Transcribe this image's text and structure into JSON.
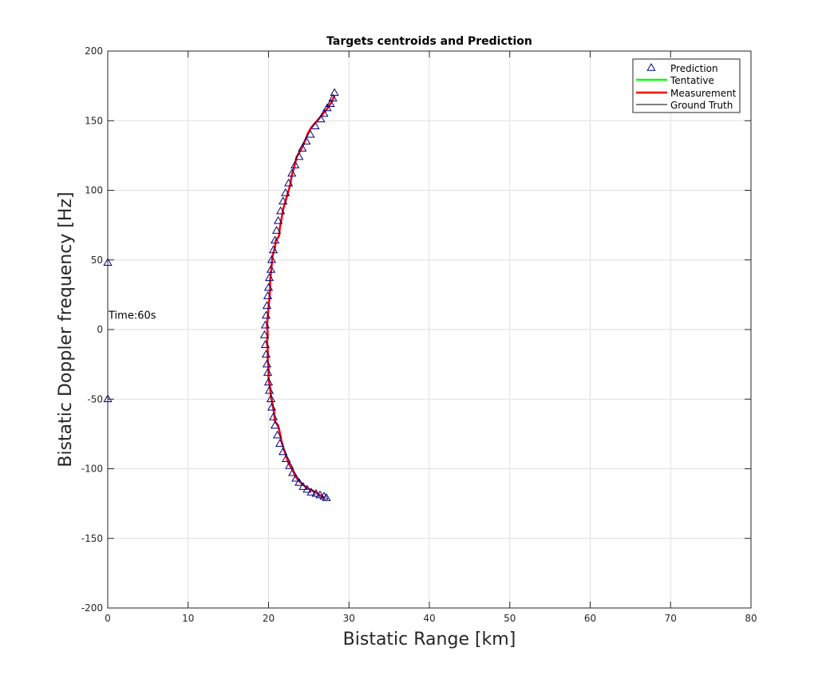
{
  "chart_data": {
    "type": "scatter",
    "title": "Targets centroids and Prediction",
    "xlabel": "Bistatic Range [km]",
    "ylabel": "Bistatic Doppler frequency [Hz]",
    "xlim": [
      0,
      80
    ],
    "ylim": [
      -200,
      200
    ],
    "xticks": [
      0,
      10,
      20,
      30,
      40,
      50,
      60,
      70,
      80
    ],
    "yticks": [
      -200,
      -150,
      -100,
      -50,
      0,
      50,
      100,
      150,
      200
    ],
    "grid": true,
    "legend_position": "top-right",
    "annotation": "Time:60s",
    "annotation_at": [
      0,
      10
    ],
    "series": [
      {
        "name": "Prediction",
        "style": "triangle-marker",
        "color": "#00007F",
        "points": [
          [
            0.0,
            48
          ],
          [
            0.0,
            -50
          ],
          [
            19.5,
            -4
          ],
          [
            19.6,
            3
          ],
          [
            19.6,
            -11
          ],
          [
            19.7,
            10
          ],
          [
            19.7,
            -18
          ],
          [
            19.8,
            17
          ],
          [
            19.8,
            -25
          ],
          [
            19.9,
            24
          ],
          [
            19.9,
            -31
          ],
          [
            20.0,
            30
          ],
          [
            20.0,
            -38
          ],
          [
            20.1,
            37
          ],
          [
            20.1,
            -44
          ],
          [
            20.3,
            43
          ],
          [
            20.3,
            -50
          ],
          [
            20.4,
            50
          ],
          [
            20.4,
            -56
          ],
          [
            20.6,
            57
          ],
          [
            20.6,
            -63
          ],
          [
            20.8,
            64
          ],
          [
            20.8,
            -69
          ],
          [
            21.0,
            71
          ],
          [
            21.1,
            -76
          ],
          [
            21.2,
            78
          ],
          [
            21.4,
            -82
          ],
          [
            21.5,
            85
          ],
          [
            21.8,
            -88
          ],
          [
            21.8,
            92
          ],
          [
            22.2,
            -93
          ],
          [
            22.1,
            98
          ],
          [
            22.6,
            -98
          ],
          [
            22.5,
            105
          ],
          [
            23.0,
            -103
          ],
          [
            22.9,
            112
          ],
          [
            23.4,
            -107
          ],
          [
            23.3,
            118
          ],
          [
            23.8,
            -110
          ],
          [
            23.8,
            124
          ],
          [
            24.3,
            -113
          ],
          [
            24.2,
            130
          ],
          [
            24.8,
            -115
          ],
          [
            24.7,
            135
          ],
          [
            25.3,
            -117
          ],
          [
            25.2,
            140
          ],
          [
            25.9,
            -118
          ],
          [
            25.8,
            146
          ],
          [
            26.4,
            -119
          ],
          [
            26.5,
            151
          ],
          [
            26.9,
            -120
          ],
          [
            27.2,
            -121
          ],
          [
            26.9,
            155
          ],
          [
            27.3,
            159
          ],
          [
            27.7,
            162
          ],
          [
            28.0,
            166
          ],
          [
            28.2,
            170
          ]
        ]
      },
      {
        "name": "Tentative",
        "style": "line",
        "color": "#00FF00",
        "points": []
      },
      {
        "name": "Measurement",
        "style": "line",
        "color": "#FF0000",
        "points": [
          [
            27.0,
            -121
          ],
          [
            26.4,
            -119
          ],
          [
            25.6,
            -116
          ],
          [
            24.8,
            -114
          ],
          [
            24.0,
            -110
          ],
          [
            23.4,
            -106
          ],
          [
            23.0,
            -101
          ],
          [
            22.5,
            -96
          ],
          [
            22.2,
            -91
          ],
          [
            21.9,
            -86
          ],
          [
            21.6,
            -80
          ],
          [
            21.4,
            -74
          ],
          [
            21.2,
            -69
          ],
          [
            20.8,
            -66
          ],
          [
            20.7,
            -60
          ],
          [
            20.5,
            -54
          ],
          [
            20.3,
            -48
          ],
          [
            20.2,
            -42
          ],
          [
            20.0,
            -35
          ],
          [
            20.0,
            -28
          ],
          [
            19.9,
            -22
          ],
          [
            19.9,
            -15
          ],
          [
            19.8,
            -9
          ],
          [
            19.9,
            -4
          ],
          [
            19.8,
            3
          ],
          [
            19.9,
            9
          ],
          [
            20.0,
            16
          ],
          [
            20.1,
            22
          ],
          [
            20.2,
            29
          ],
          [
            20.2,
            35
          ],
          [
            20.3,
            41
          ],
          [
            20.4,
            47
          ],
          [
            20.5,
            53
          ],
          [
            20.8,
            59
          ],
          [
            20.9,
            64
          ],
          [
            21.3,
            67
          ],
          [
            21.4,
            73
          ],
          [
            21.6,
            79
          ],
          [
            21.8,
            86
          ],
          [
            22.1,
            92
          ],
          [
            22.4,
            98
          ],
          [
            22.7,
            104
          ],
          [
            22.9,
            111
          ],
          [
            23.2,
            117
          ],
          [
            23.5,
            124
          ],
          [
            24.0,
            129
          ],
          [
            24.5,
            135
          ],
          [
            24.9,
            141
          ],
          [
            25.3,
            145
          ],
          [
            25.9,
            149
          ],
          [
            26.5,
            153
          ],
          [
            27.2,
            158
          ],
          [
            27.8,
            163
          ],
          [
            28.2,
            168
          ]
        ]
      },
      {
        "name": "Ground Truth",
        "style": "line",
        "color": "#000000",
        "points": []
      }
    ]
  }
}
